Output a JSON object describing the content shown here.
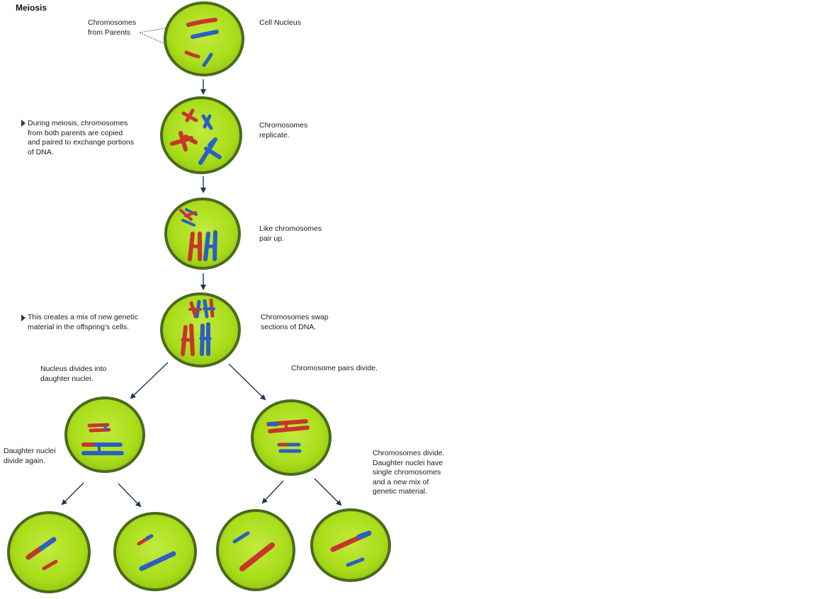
{
  "title": "Meiosis",
  "labels": {
    "chromosomes_from_parents": "Chromosomes\nfrom Parents",
    "cell_nucleus": "Cell Nucleus",
    "during_meiosis": "During meiosis, chromosomes\nfrom both parents are copied\nand paired to exchange portions\nof DNA.",
    "chromosomes_replicate": "Chromosomes\nreplicate.",
    "like_chromosomes_pair": "Like chromosomes\npair up.",
    "mix_of_genetic": "This creates a mix of new genetic\nmaterial in the offspring's cells.",
    "chromosomes_swap": "Chromosomes swap\nsections of DNA.",
    "nucleus_divides": "Nucleus divides into\ndaughter nuclei.",
    "chromosome_pairs_divide": "Chromosome pairs divide.",
    "daughter_divide_again": "Daughter nuclei\ndivide again.",
    "chromosomes_divide_final": "Chromosomes divide.\nDaughter nuclei have\nsingle chromosomes\nand a new mix of\ngenetic material."
  },
  "colors": {
    "cell_fill": "#a9dd1a",
    "cell_inner": "#bfe83a",
    "cell_border": "#4a6a1c",
    "paternal_red": "#c8352b",
    "maternal_blue": "#2c5fc2",
    "arrow": "#1d3557",
    "bullet": "#1d3b66"
  },
  "icons": {
    "bullet": "triangle-bullet-icon",
    "arrow": "arrow-down-icon"
  }
}
